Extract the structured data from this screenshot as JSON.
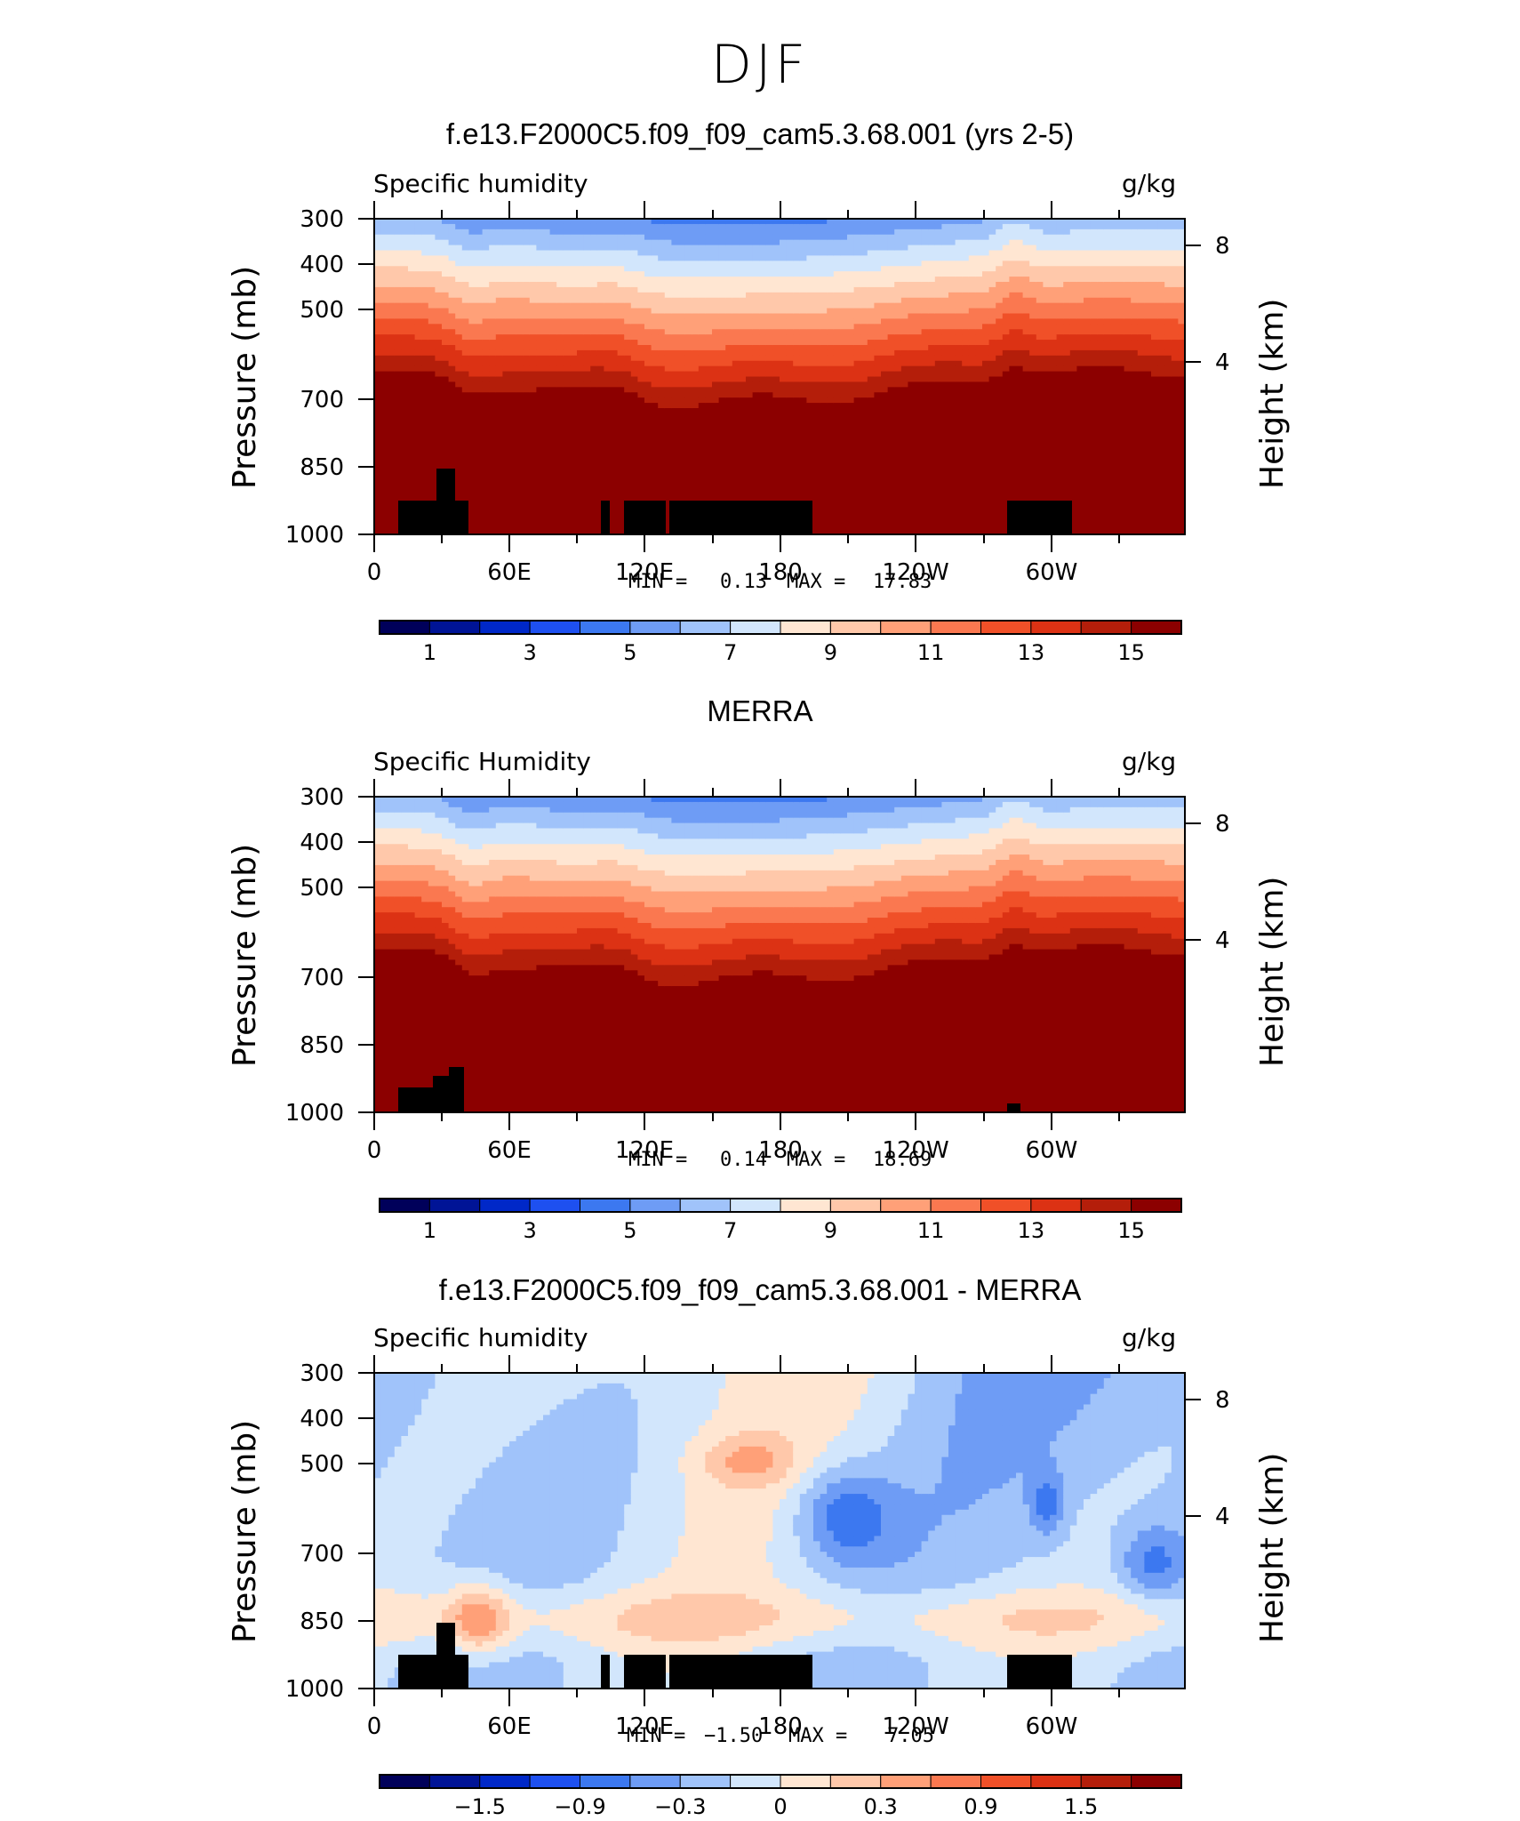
{
  "figure_title": "DJF",
  "chart_data": [
    {
      "type": "heatmap",
      "title": "f.e13.F2000C5.f09_f09_cam5.3.68.001 (yrs 2-5)",
      "variable": "Specific humidity",
      "units": "g/kg",
      "ylabel": "Pressure (mb)",
      "ylabel_right": "Height (km)",
      "x_ticks": [
        "0",
        "60E",
        "120E",
        "180",
        "120W",
        "60W"
      ],
      "y_ticks": [
        "300",
        "400",
        "500",
        "700",
        "850",
        "1000"
      ],
      "y_ticks_right": [
        "8",
        "4"
      ],
      "ylim": [
        1000,
        300
      ],
      "stats": {
        "min_label": "MIN =",
        "min": "0.13",
        "max_label": "MAX =",
        "max": "17.83"
      },
      "colorbar": {
        "levels": [
          1,
          2,
          3,
          4,
          5,
          6,
          7,
          8,
          9,
          10,
          11,
          12,
          13,
          14,
          15,
          16
        ],
        "labels": [
          "1",
          "3",
          "5",
          "7",
          "9",
          "11",
          "13",
          "15"
        ]
      },
      "palette": [
        "#00005a",
        "#001496",
        "#0028c8",
        "#1e50f0",
        "#3c78f0",
        "#6e9cf5",
        "#a0c3fa",
        "#d2e6fc",
        "#ffe6d2",
        "#ffc8aa",
        "#ffa078",
        "#fa7850",
        "#f05028",
        "#dc3214",
        "#b41e0a",
        "#8c0000"
      ]
    },
    {
      "type": "heatmap",
      "title": "MERRA",
      "variable": "Specific Humidity",
      "units": "g/kg",
      "ylabel": "Pressure (mb)",
      "ylabel_right": "Height (km)",
      "x_ticks": [
        "0",
        "60E",
        "120E",
        "180",
        "120W",
        "60W"
      ],
      "y_ticks": [
        "300",
        "400",
        "500",
        "700",
        "850",
        "1000"
      ],
      "y_ticks_right": [
        "8",
        "4"
      ],
      "ylim": [
        1000,
        300
      ],
      "stats": {
        "min_label": "MIN =",
        "min": "0.14",
        "max_label": "MAX =",
        "max": "18.69"
      },
      "colorbar": {
        "levels": [
          1,
          2,
          3,
          4,
          5,
          6,
          7,
          8,
          9,
          10,
          11,
          12,
          13,
          14,
          15,
          16
        ],
        "labels": [
          "1",
          "3",
          "5",
          "7",
          "9",
          "11",
          "13",
          "15"
        ]
      },
      "palette": [
        "#00005a",
        "#001496",
        "#0028c8",
        "#1e50f0",
        "#3c78f0",
        "#6e9cf5",
        "#a0c3fa",
        "#d2e6fc",
        "#ffe6d2",
        "#ffc8aa",
        "#ffa078",
        "#fa7850",
        "#f05028",
        "#dc3214",
        "#b41e0a",
        "#8c0000"
      ]
    },
    {
      "type": "heatmap",
      "title": "f.e13.F2000C5.f09_f09_cam5.3.68.001 - MERRA",
      "variable": "Specific humidity",
      "units": "g/kg",
      "ylabel": "Pressure (mb)",
      "ylabel_right": "Height (km)",
      "x_ticks": [
        "0",
        "60E",
        "120E",
        "180",
        "120W",
        "60W"
      ],
      "y_ticks": [
        "300",
        "400",
        "500",
        "700",
        "850",
        "1000"
      ],
      "y_ticks_right": [
        "8",
        "4"
      ],
      "ylim": [
        1000,
        300
      ],
      "stats": {
        "min_label": "MIN =",
        "min": "−1.50",
        "max_label": "MAX =",
        "max": "7.05"
      },
      "colorbar": {
        "levels": [
          -1.8,
          -1.5,
          -1.2,
          -0.9,
          -0.6,
          -0.3,
          0,
          0.3,
          0.6,
          0.9,
          1.2,
          1.5,
          1.8
        ],
        "labels": [
          "−1.5",
          "−0.9",
          "−0.3",
          "0",
          "0.3",
          "0.9",
          "1.5"
        ]
      },
      "palette": [
        "#00005a",
        "#001496",
        "#0028c8",
        "#1e50f0",
        "#3c78f0",
        "#6e9cf5",
        "#a0c3fa",
        "#d2e6fc",
        "#ffe6d2",
        "#ffc8aa",
        "#ffa078",
        "#fa7850",
        "#f05028",
        "#dc3214",
        "#b41e0a",
        "#8c0000"
      ]
    }
  ]
}
